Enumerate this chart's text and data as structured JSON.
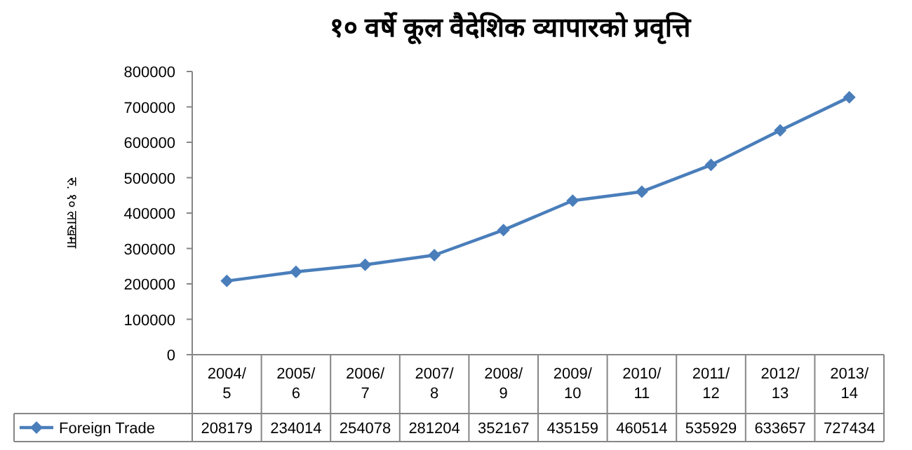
{
  "chart_data": {
    "type": "line",
    "title": "१० वर्षे कूल वैदेशिक व्यापारको प्रवृत्ति",
    "ylabel": "रु. १० लाखमा",
    "categories": [
      "2004/5",
      "2005/6",
      "2006/7",
      "2007/8",
      "2008/9",
      "2009/10",
      "2010/11",
      "2011/12",
      "2012/13",
      "2013/14"
    ],
    "series": [
      {
        "name": "Foreign Trade",
        "color": "#4a7ebb",
        "values": [
          208179,
          234014,
          254078,
          281204,
          352167,
          435159,
          460514,
          535929,
          633657,
          727434
        ]
      }
    ],
    "ylim": [
      0,
      800000
    ],
    "yticks": [
      0,
      100000,
      200000,
      300000,
      400000,
      500000,
      600000,
      700000,
      800000
    ],
    "marker": "diamond",
    "grid": false,
    "legend": "bottom",
    "data_labels": true
  }
}
